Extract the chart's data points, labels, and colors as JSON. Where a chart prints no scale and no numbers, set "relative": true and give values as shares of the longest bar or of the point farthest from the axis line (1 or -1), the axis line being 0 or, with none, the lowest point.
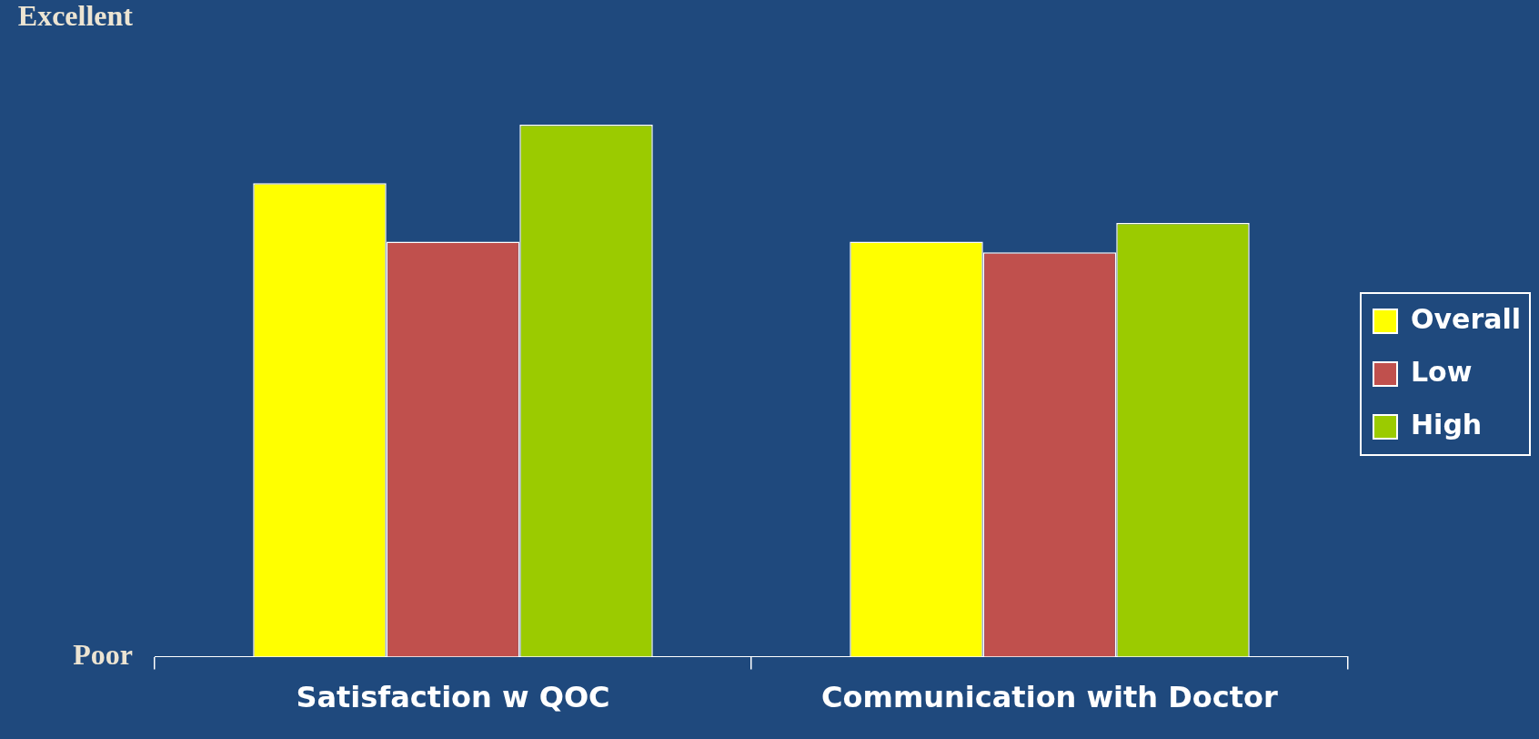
{
  "chart_data": {
    "type": "bar",
    "categories": [
      "Satisfaction w QOC",
      "Communication with Doctor"
    ],
    "series": [
      {
        "name": "Overall",
        "color": "#ffff00",
        "values": [
          0.89,
          0.78
        ]
      },
      {
        "name": "Low",
        "color": "#c0504d",
        "values": [
          0.78,
          0.76
        ]
      },
      {
        "name": "High",
        "color": "#9bcb00",
        "values": [
          1,
          0.815
        ]
      }
    ],
    "relative": true,
    "annotations": [
      "Excellent",
      "Poor"
    ],
    "legend": "right"
  }
}
